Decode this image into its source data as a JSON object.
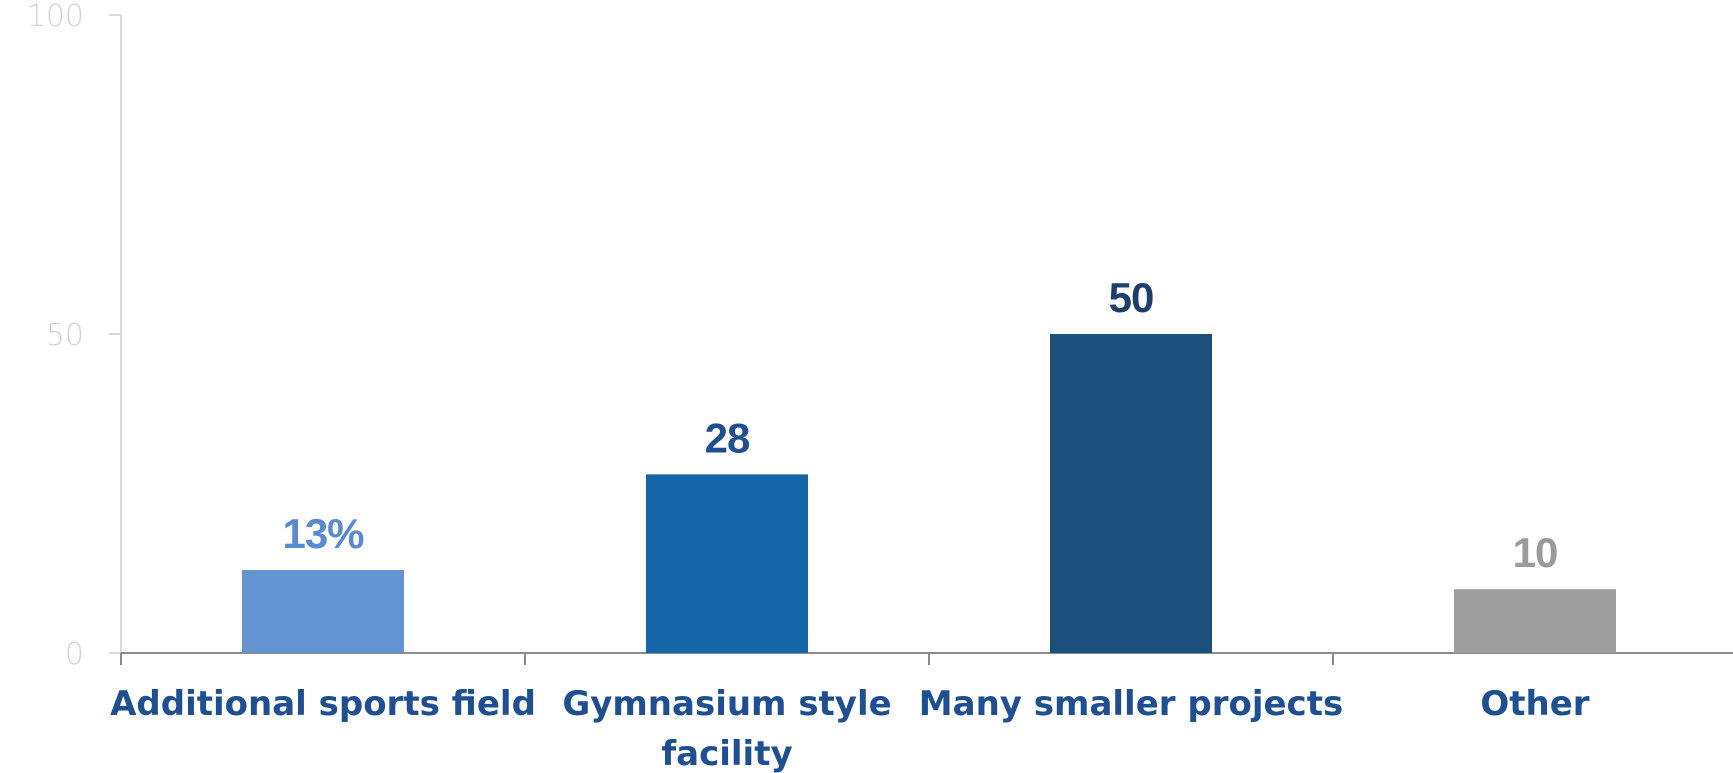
{
  "chart_data": {
    "type": "bar",
    "categories": [
      [
        "Additional sports field"
      ],
      [
        "Gymnasium style",
        "facility"
      ],
      [
        "Many smaller projects"
      ],
      [
        "Other"
      ]
    ],
    "values": [
      13,
      28,
      50,
      10
    ],
    "value_labels": [
      "13%",
      "28",
      "50",
      "10"
    ],
    "bar_colors": [
      "#6495d2",
      "#1466a8",
      "#1d4f7c",
      "#9e9e9e"
    ],
    "label_colors": [
      "#5b8ad0",
      "#1d4f91",
      "#1d3f6e",
      "#9a9a9a"
    ],
    "category_label_color": "#1d4f91",
    "ylim": [
      0,
      100
    ],
    "yticks": [
      0,
      50,
      100
    ],
    "ytick_labels": [
      "0",
      "50",
      "100"
    ],
    "grid": false,
    "title": "",
    "xlabel": "",
    "ylabel": ""
  }
}
